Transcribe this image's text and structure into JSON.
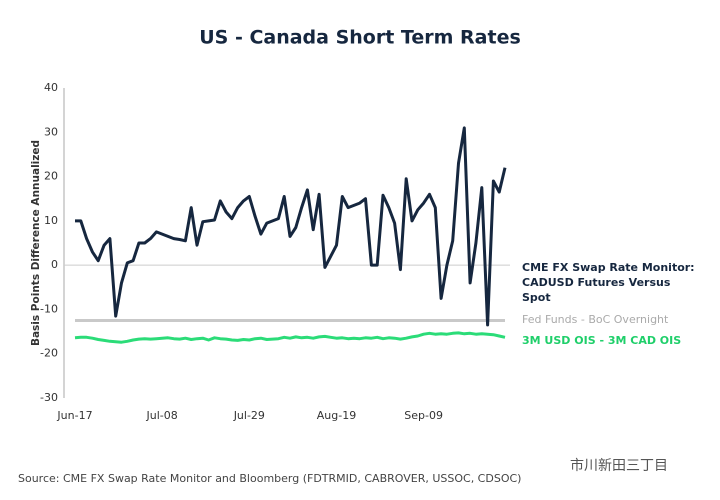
{
  "chart_data": {
    "type": "line",
    "title": "US - Canada Short Term Rates",
    "y_label": "Basis Points Difference Annualized",
    "source": "Source: CME FX Swap Rate Monitor and Bloomberg (FDTRMID, CABROVER, USSOC, CDSOC)",
    "watermark": "市川新田三丁目",
    "categories": [
      "Jun-17",
      null,
      null,
      null,
      null,
      null,
      null,
      null,
      null,
      null,
      null,
      null,
      null,
      null,
      null,
      "Jul-08",
      null,
      null,
      null,
      null,
      null,
      null,
      null,
      null,
      null,
      null,
      null,
      null,
      null,
      null,
      "Jul-29",
      null,
      null,
      null,
      null,
      null,
      null,
      null,
      null,
      null,
      null,
      null,
      null,
      null,
      null,
      "Aug-19",
      null,
      null,
      null,
      null,
      null,
      null,
      null,
      null,
      null,
      null,
      null,
      null,
      null,
      null,
      "Sep-09",
      null,
      null,
      null,
      null,
      null,
      null,
      null,
      null,
      null,
      null,
      null,
      null,
      null,
      null
    ],
    "ylim": [
      -30,
      40
    ],
    "yticks": [
      -30,
      -20,
      -10,
      0,
      10,
      20,
      30,
      40
    ],
    "series": [
      {
        "name": "CME FX Swap Rate Monitor: CADUSD Futures Versus Spot",
        "color": "#16273f",
        "values": [
          10,
          10,
          6,
          3,
          1,
          4.5,
          6,
          -11.5,
          -4,
          0.5,
          1,
          5,
          5,
          6,
          7.5,
          7,
          6.5,
          6,
          5.8,
          5.5,
          13,
          4.5,
          9.8,
          10,
          10.2,
          14.5,
          12,
          10.5,
          13,
          14.5,
          15.5,
          11,
          7,
          9.5,
          10,
          10.5,
          15.5,
          6.5,
          8.5,
          13,
          17,
          8,
          16,
          -0.5,
          2,
          4.5,
          15.5,
          13,
          13.5,
          14,
          15,
          0,
          0,
          15.8,
          13,
          9.5,
          -1,
          19.5,
          10,
          12.5,
          14,
          16,
          13,
          -7.5,
          0,
          5.5,
          23,
          31,
          -4,
          5,
          17.5,
          -13.5,
          19,
          16.5,
          22
        ]
      },
      {
        "name": "Fed Funds - BoC Overnight",
        "color": "#c9c9c9",
        "values": [
          -12.5,
          -12.5,
          -12.5,
          -12.5,
          -12.5,
          -12.5,
          -12.5,
          -12.5,
          -12.5,
          -12.5,
          -12.5,
          -12.5,
          -12.5,
          -12.5,
          -12.5,
          -12.5,
          -12.5,
          -12.5,
          -12.5,
          -12.5,
          -12.5,
          -12.5,
          -12.5,
          -12.5,
          -12.5,
          -12.5,
          -12.5,
          -12.5,
          -12.5,
          -12.5,
          -12.5,
          -12.5,
          -12.5,
          -12.5,
          -12.5,
          -12.5,
          -12.5,
          -12.5,
          -12.5,
          -12.5,
          -12.5,
          -12.5,
          -12.5,
          -12.5,
          -12.5,
          -12.5,
          -12.5,
          -12.5,
          -12.5,
          -12.5,
          -12.5,
          -12.5,
          -12.5,
          -12.5,
          -12.5,
          -12.5,
          -12.5,
          -12.5,
          -12.5,
          -12.5,
          -12.5,
          -12.5,
          -12.5,
          -12.5,
          -12.5,
          -12.5,
          -12.5,
          -12.5,
          -12.5,
          -12.5,
          -12.5,
          -12.5,
          -12.5,
          -12.5,
          -12.5
        ]
      },
      {
        "name": "3M USD OIS - 3M CAD OIS",
        "color": "#2bdc78",
        "values": [
          -16.4,
          -16.3,
          -16.3,
          -16.5,
          -16.8,
          -17,
          -17.2,
          -17.3,
          -17.4,
          -17.2,
          -16.9,
          -16.7,
          -16.6,
          -16.7,
          -16.6,
          -16.5,
          -16.4,
          -16.6,
          -16.7,
          -16.5,
          -16.8,
          -16.6,
          -16.5,
          -16.9,
          -16.4,
          -16.6,
          -16.7,
          -16.9,
          -17,
          -16.8,
          -16.9,
          -16.6,
          -16.5,
          -16.8,
          -16.7,
          -16.6,
          -16.3,
          -16.5,
          -16.2,
          -16.4,
          -16.3,
          -16.5,
          -16.2,
          -16.1,
          -16.3,
          -16.5,
          -16.4,
          -16.6,
          -16.5,
          -16.6,
          -16.4,
          -16.5,
          -16.3,
          -16.6,
          -16.4,
          -16.5,
          -16.7,
          -16.5,
          -16.2,
          -16,
          -15.6,
          -15.4,
          -15.6,
          -15.5,
          -15.6,
          -15.4,
          -15.3,
          -15.5,
          -15.4,
          -15.6,
          -15.5,
          -15.6,
          -15.7,
          -16,
          -16.3
        ]
      }
    ]
  }
}
